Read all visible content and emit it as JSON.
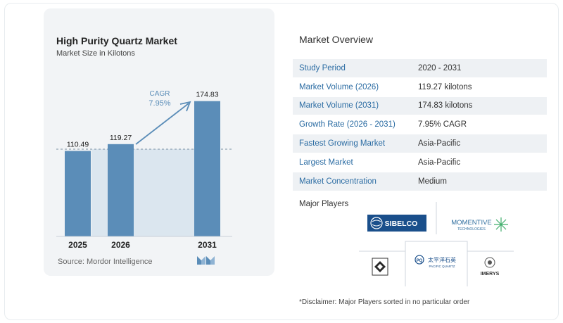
{
  "chart": {
    "title": "High Purity Quartz Market",
    "subtitle": "Market Size in Kilotons",
    "cagr_label": "CAGR",
    "cagr_value": "7.95%",
    "source": "Source:  Mordor Intelligence"
  },
  "chart_data": {
    "type": "bar",
    "title": "High Purity Quartz Market",
    "subtitle": "Market Size in Kilotons",
    "categories": [
      "2025",
      "2026",
      "2031"
    ],
    "values": [
      110.49,
      119.27,
      174.83
    ],
    "value_labels": [
      "110.49",
      "119.27",
      "174.83"
    ],
    "ylim": [
      0,
      180
    ],
    "grid": false,
    "annotation": "CAGR 7.95%",
    "bar_color": "#5b8db8",
    "highlight_color": "#dbe6ef"
  },
  "overview": {
    "title": "Market Overview",
    "rows": [
      {
        "label": "Study Period",
        "value": "2020 - 2031"
      },
      {
        "label": "Market Volume (2026)",
        "value": "119.27 kilotons"
      },
      {
        "label": "Market Volume (2031)",
        "value": "174.83 kilotons"
      },
      {
        "label": "Growth Rate (2026 - 2031)",
        "value": "7.95% CAGR"
      },
      {
        "label": "Fastest Growing Market",
        "value": "Asia-Pacific"
      },
      {
        "label": "Largest Market",
        "value": "Asia-Pacific"
      },
      {
        "label": "Market Concentration",
        "value": "Medium"
      }
    ]
  },
  "players": {
    "title": "Major Players",
    "logos": {
      "sibelco": "SIBELCO",
      "momentive": "MOMENTIVE",
      "momentive_sub": "TECHNOLOGIES",
      "pacific_cn": "太平洋石英",
      "pacific_en": "PACIFIC QUARTZ",
      "imerys": "IMERYS"
    },
    "disclaimer": "*Disclaimer: Major Players sorted in no particular order"
  }
}
